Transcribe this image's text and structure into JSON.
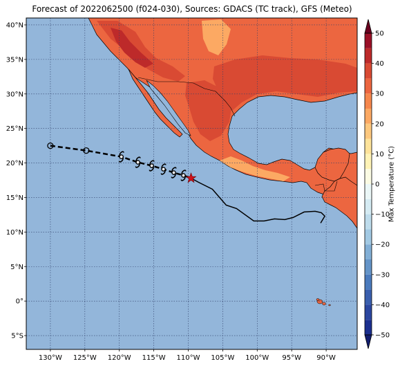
{
  "title": "Forecast of 2022062500 (f024-030), Sources: GDACS (TC track), GFS (Meteo)",
  "map": {
    "lon_range": [
      -133.5,
      -85.5
    ],
    "lat_range": [
      -7,
      41
    ],
    "lon_ticks": [
      {
        "v": -130,
        "label": "130°W"
      },
      {
        "v": -125,
        "label": "125°W"
      },
      {
        "v": -120,
        "label": "120°W"
      },
      {
        "v": -115,
        "label": "115°W"
      },
      {
        "v": -110,
        "label": "110°W"
      },
      {
        "v": -105,
        "label": "105°W"
      },
      {
        "v": -100,
        "label": "100°W"
      },
      {
        "v": -95,
        "label": "95°W"
      },
      {
        "v": -90,
        "label": "90°W"
      }
    ],
    "lat_ticks": [
      {
        "v": 40,
        "label": "40°N"
      },
      {
        "v": 35,
        "label": "35°N"
      },
      {
        "v": 30,
        "label": "30°N"
      },
      {
        "v": 25,
        "label": "25°N"
      },
      {
        "v": 20,
        "label": "20°N"
      },
      {
        "v": 15,
        "label": "15°N"
      },
      {
        "v": 10,
        "label": "10°N"
      },
      {
        "v": 5,
        "label": "5°N"
      },
      {
        "v": 0,
        "label": "0°"
      },
      {
        "v": -5,
        "label": "5°S"
      }
    ]
  },
  "tc_track": {
    "forecast_past_points": [
      [
        -130.0,
        22.5
      ],
      [
        -124.8,
        21.8
      ]
    ],
    "forecast_cyclone_points": [
      [
        -119.7,
        20.9
      ],
      [
        -117.3,
        20.1
      ],
      [
        -115.3,
        19.6
      ],
      [
        -113.6,
        19.1
      ],
      [
        -112.1,
        18.6
      ],
      [
        -110.7,
        18.2
      ]
    ],
    "current_position": [
      -109.6,
      17.8
    ],
    "best_track_line": [
      [
        -109.6,
        17.8
      ],
      [
        -108.5,
        17.2
      ],
      [
        -106.5,
        16.2
      ],
      [
        -104.5,
        13.9
      ],
      [
        -103.0,
        13.4
      ],
      [
        -100.5,
        11.6
      ],
      [
        -99.0,
        11.6
      ],
      [
        -97.5,
        11.9
      ],
      [
        -96.0,
        11.8
      ],
      [
        -94.8,
        12.1
      ],
      [
        -93.2,
        12.9
      ],
      [
        -91.6,
        13.0
      ],
      [
        -90.7,
        12.8
      ],
      [
        -90.2,
        12.3
      ],
      [
        -90.8,
        11.3
      ]
    ]
  },
  "colorbar": {
    "label": "Max Temperature (°C)",
    "ticks": [
      {
        "v": 50,
        "label": "50"
      },
      {
        "v": 40,
        "label": "40"
      },
      {
        "v": 30,
        "label": "30"
      },
      {
        "v": 20,
        "label": "20"
      },
      {
        "v": 10,
        "label": "10"
      },
      {
        "v": 0,
        "label": "0"
      },
      {
        "v": -10,
        "label": "−10"
      },
      {
        "v": -20,
        "label": "−20"
      },
      {
        "v": -30,
        "label": "−30"
      },
      {
        "v": -40,
        "label": "−40"
      },
      {
        "v": -50,
        "label": "−50"
      }
    ],
    "levels": [
      {
        "from": -50,
        "to": -45,
        "color": "#1b2f8f"
      },
      {
        "from": -45,
        "to": -40,
        "color": "#2b47a0"
      },
      {
        "from": -40,
        "to": -35,
        "color": "#3a5fae"
      },
      {
        "from": -35,
        "to": -30,
        "color": "#4b7bbd"
      },
      {
        "from": -30,
        "to": -25,
        "color": "#6494c8"
      },
      {
        "from": -25,
        "to": -20,
        "color": "#82afd6"
      },
      {
        "from": -20,
        "to": -15,
        "color": "#a2c9e3"
      },
      {
        "from": -15,
        "to": -10,
        "color": "#bedcec"
      },
      {
        "from": -10,
        "to": -5,
        "color": "#d5ebf3"
      },
      {
        "from": -5,
        "to": 0,
        "color": "#ebf7f7"
      },
      {
        "from": 0,
        "to": 5,
        "color": "#fbfbe3"
      },
      {
        "from": 5,
        "to": 10,
        "color": "#fff3b6"
      },
      {
        "from": 10,
        "to": 15,
        "color": "#fee39a"
      },
      {
        "from": 15,
        "to": 20,
        "color": "#fdc87e"
      },
      {
        "from": 20,
        "to": 25,
        "color": "#fca963"
      },
      {
        "from": 25,
        "to": 30,
        "color": "#f6874c"
      },
      {
        "from": 30,
        "to": 35,
        "color": "#ec6640"
      },
      {
        "from": 35,
        "to": 40,
        "color": "#d94a33"
      },
      {
        "from": 40,
        "to": 45,
        "color": "#bd2a2a"
      },
      {
        "from": 45,
        "to": 50,
        "color": "#9b1027"
      }
    ],
    "extend_low_color": "#121d6e",
    "extend_high_color": "#6a0020"
  },
  "colors": {
    "ocean": "#93b6da",
    "land_hot": "#ec6640",
    "land_warm": "#f6874c",
    "land_veryhot": "#d94a33",
    "land_extreme": "#bd2a2a",
    "land_mild": "#fca963",
    "track": "#000000",
    "current_marker": "#d0121b"
  }
}
